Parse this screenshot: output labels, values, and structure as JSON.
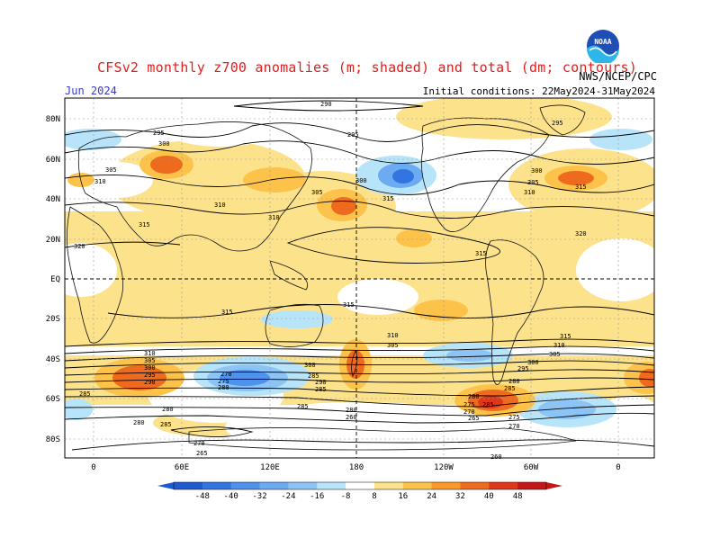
{
  "title": "CFSv2 monthly z700 anomalies (m; shaded) and total (dm; contours)",
  "forecast_month": "Jun 2024",
  "initial_conditions": "Initial conditions: 22May2024-31May2024",
  "agency": "NWS/NCEP/CPC",
  "logo_text": "NOAA",
  "lat_labels": [
    "80N",
    "60N",
    "40N",
    "20N",
    "EQ",
    "20S",
    "40S",
    "60S",
    "80S"
  ],
  "lon_labels": [
    "0",
    "60E",
    "120E",
    "180",
    "120W",
    "60W",
    "0"
  ],
  "colorbar": {
    "labels": [
      "-48",
      "-40",
      "-32",
      "-24",
      "-16",
      "-8",
      "8",
      "16",
      "24",
      "32",
      "40",
      "48"
    ],
    "colors": [
      "#1e5ad0",
      "#3275e0",
      "#4f92ec",
      "#6cabf2",
      "#8cc4f6",
      "#b8e4fa",
      "#ffffff",
      "#fde28c",
      "#fcc24a",
      "#f99a28",
      "#ee6a1e",
      "#e0361a",
      "#c41818"
    ]
  },
  "contour_labels": [
    "290",
    "295",
    "300",
    "305",
    "310",
    "315",
    "320",
    "285",
    "280",
    "275",
    "270",
    "265",
    "260"
  ]
}
